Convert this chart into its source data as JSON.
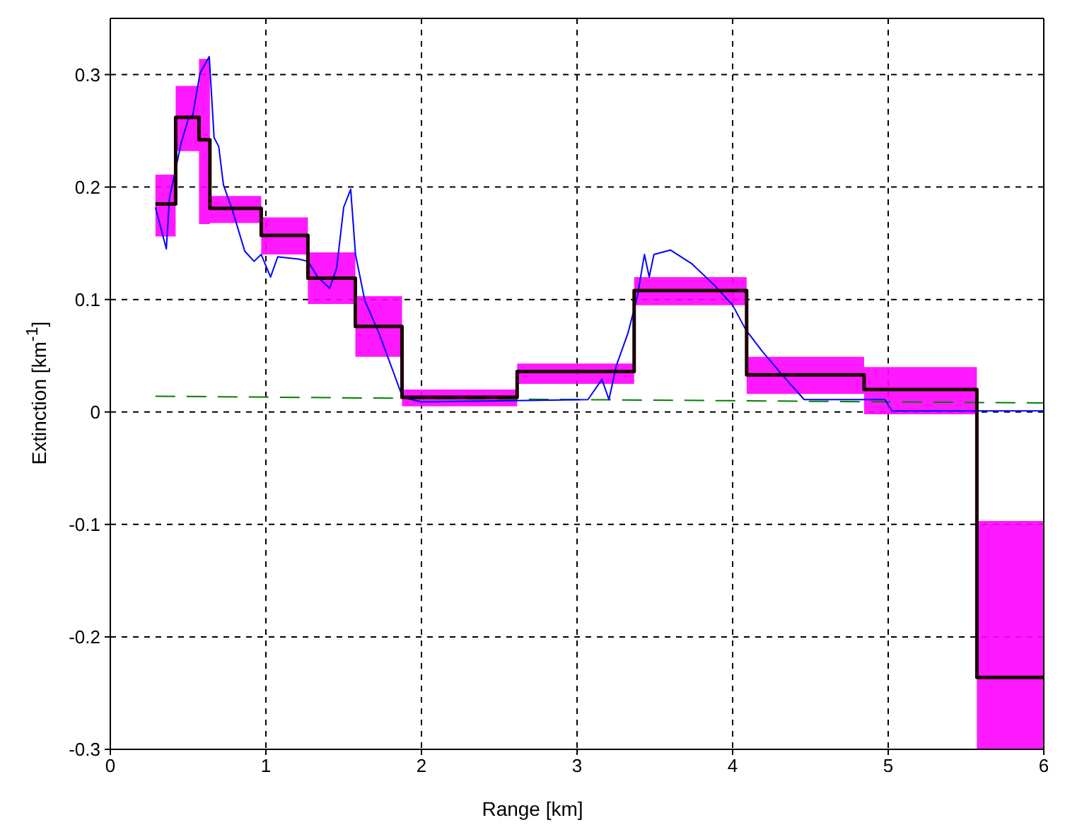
{
  "chart_data": {
    "type": "line",
    "xlabel": "Range [km]",
    "ylabel": "Extinction [km$^{-1}$]",
    "xlim": [
      0,
      6
    ],
    "xticks": [
      0,
      1,
      2,
      3,
      4,
      5,
      6
    ],
    "ylim": [
      -0.3,
      0.35
    ],
    "yticks": [
      -0.3,
      -0.2,
      -0.1,
      0,
      0.1,
      0.2,
      0.3
    ],
    "grid": true,
    "marker": "none",
    "series": [
      {
        "color": "#008000",
        "line_style": "dashed",
        "x": [
          0.29,
          2,
          4,
          6
        ],
        "values": [
          0.014,
          0.012,
          0.01,
          0.008
        ]
      },
      {
        "color": "#0000ff",
        "line_style": "solid",
        "x": [
          0.29,
          0.36,
          0.38,
          0.455,
          0.5,
          0.53,
          0.576,
          0.636,
          0.667,
          0.697,
          0.727,
          0.788,
          0.864,
          0.924,
          0.97,
          1.03,
          1.076,
          1.21,
          1.27,
          1.333,
          1.41,
          1.455,
          1.5,
          1.545,
          1.576,
          1.636,
          1.727,
          1.818,
          1.879,
          2.0,
          3.07,
          3.16,
          3.205,
          3.252,
          3.327,
          3.388,
          3.433,
          3.464,
          3.494,
          3.6,
          3.736,
          3.888,
          4.0,
          4.085,
          4.19,
          4.312,
          4.46,
          4.979,
          5.024,
          6.0
        ],
        "values": [
          0.182,
          0.145,
          0.19,
          0.239,
          0.26,
          0.264,
          0.301,
          0.316,
          0.244,
          0.236,
          0.202,
          0.178,
          0.143,
          0.134,
          0.14,
          0.12,
          0.138,
          0.136,
          0.134,
          0.12,
          0.11,
          0.128,
          0.182,
          0.198,
          0.14,
          0.099,
          0.07,
          0.036,
          0.013,
          0.009,
          0.011,
          0.029,
          0.011,
          0.041,
          0.07,
          0.103,
          0.14,
          0.12,
          0.14,
          0.144,
          0.132,
          0.112,
          0.095,
          0.073,
          0.054,
          0.034,
          0.011,
          0.011,
          0.001,
          0.001
        ]
      },
      {
        "type": "step",
        "color": "#1a0000",
        "line_style": "solid",
        "x": [
          0.29,
          0.42,
          0.57,
          0.64,
          0.97,
          1.27,
          1.575,
          1.875,
          2.615,
          3.367,
          4.09,
          4.845,
          5.57,
          6
        ],
        "values": [
          0.185,
          0.262,
          0.242,
          0.181,
          0.157,
          0.119,
          0.076,
          0.013,
          0.036,
          0.108,
          0.033,
          0.02,
          -0.236,
          -0.236
        ],
        "lower": [
          0.156,
          0.232,
          0.167,
          0.168,
          0.14,
          0.096,
          0.049,
          0.005,
          0.025,
          0.095,
          0.016,
          -0.002,
          -0.3,
          -0.3
        ],
        "upper": [
          0.211,
          0.29,
          0.314,
          0.192,
          0.173,
          0.142,
          0.103,
          0.02,
          0.043,
          0.12,
          0.049,
          0.04,
          -0.097,
          -0.097
        ]
      }
    ]
  }
}
